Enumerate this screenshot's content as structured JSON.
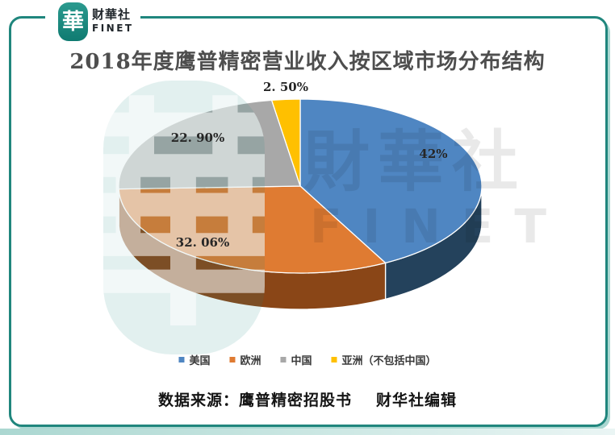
{
  "brand": {
    "logo_glyph": "華",
    "name": "财華社",
    "subname": "FINET"
  },
  "chart": {
    "title": "2018年度鹰普精密营业收入按区域市场分布结构"
  },
  "watermark": {
    "logo_glyph": "華",
    "line1": "財華社",
    "line2": "FINET"
  },
  "source": {
    "label": "数据来源：鹰普精密招股书",
    "credit": "财华社编辑"
  },
  "chart_data": {
    "type": "pie",
    "style": "3d",
    "title": "2018年度鹰普精密营业收入按区域市场分布结构",
    "unit": "%",
    "total": 100,
    "start_angle_deg": 0,
    "direction": "clockwise",
    "legend_position": "bottom",
    "slices": [
      {
        "name": "美国",
        "value": 42,
        "label": "42%",
        "color": "#4F86C2",
        "side_color": "#24425C"
      },
      {
        "name": "欧洲",
        "value": 32.06,
        "label": "32. 06%",
        "color": "#DF7B32",
        "side_color": "#8A4617"
      },
      {
        "name": "中国",
        "value": 22.9,
        "label": "22. 90%",
        "color": "#A8A8A8",
        "side_color": "#6F6F6F"
      },
      {
        "name": "亚洲（不包括中国）",
        "value": 2.5,
        "label": "2. 50%",
        "color": "#FFC000",
        "side_color": "#B38600"
      }
    ]
  }
}
